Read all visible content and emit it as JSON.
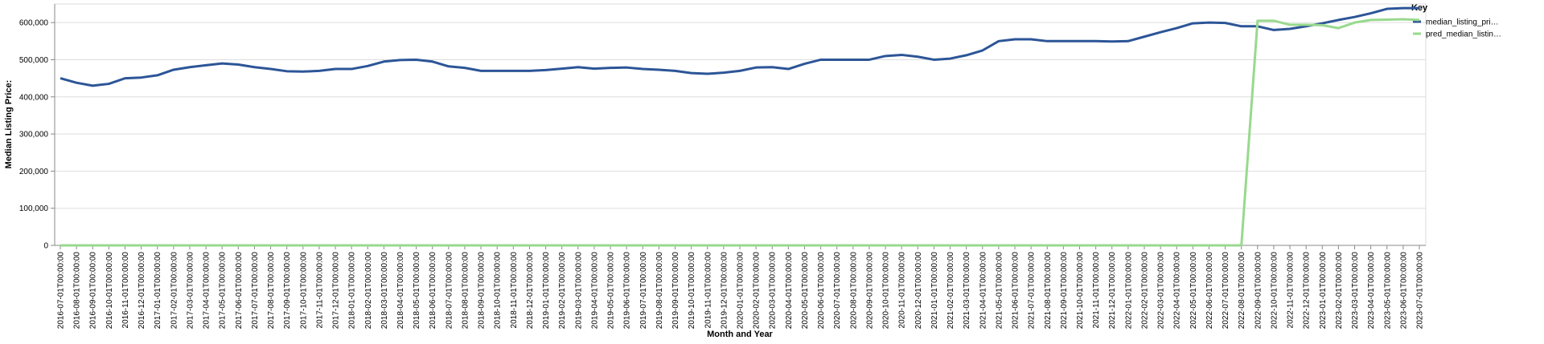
{
  "chart_data": {
    "type": "line",
    "x_label": "Month and Year",
    "y_label": "Median Listing Price:",
    "legend_title": "Key",
    "legend_position": "right",
    "grid": true,
    "x": [
      "2016-07-01T00:00:00",
      "2016-08-01T00:00:00",
      "2016-09-01T00:00:00",
      "2016-10-01T00:00:00",
      "2016-11-01T00:00:00",
      "2016-12-01T00:00:00",
      "2017-01-01T00:00:00",
      "2017-02-01T00:00:00",
      "2017-03-01T00:00:00",
      "2017-04-01T00:00:00",
      "2017-05-01T00:00:00",
      "2017-06-01T00:00:00",
      "2017-07-01T00:00:00",
      "2017-08-01T00:00:00",
      "2017-09-01T00:00:00",
      "2017-10-01T00:00:00",
      "2017-11-01T00:00:00",
      "2017-12-01T00:00:00",
      "2018-01-01T00:00:00",
      "2018-02-01T00:00:00",
      "2018-03-01T00:00:00",
      "2018-04-01T00:00:00",
      "2018-05-01T00:00:00",
      "2018-06-01T00:00:00",
      "2018-07-01T00:00:00",
      "2018-08-01T00:00:00",
      "2018-09-01T00:00:00",
      "2018-10-01T00:00:00",
      "2018-11-01T00:00:00",
      "2018-12-01T00:00:00",
      "2019-01-01T00:00:00",
      "2019-02-01T00:00:00",
      "2019-03-01T00:00:00",
      "2019-04-01T00:00:00",
      "2019-05-01T00:00:00",
      "2019-06-01T00:00:00",
      "2019-07-01T00:00:00",
      "2019-08-01T00:00:00",
      "2019-09-01T00:00:00",
      "2019-10-01T00:00:00",
      "2019-11-01T00:00:00",
      "2019-12-01T00:00:00",
      "2020-01-01T00:00:00",
      "2020-02-01T00:00:00",
      "2020-03-01T00:00:00",
      "2020-04-01T00:00:00",
      "2020-05-01T00:00:00",
      "2020-06-01T00:00:00",
      "2020-07-01T00:00:00",
      "2020-08-01T00:00:00",
      "2020-09-01T00:00:00",
      "2020-10-01T00:00:00",
      "2020-11-01T00:00:00",
      "2020-12-01T00:00:00",
      "2021-01-01T00:00:00",
      "2021-02-01T00:00:00",
      "2021-03-01T00:00:00",
      "2021-04-01T00:00:00",
      "2021-05-01T00:00:00",
      "2021-06-01T00:00:00",
      "2021-07-01T00:00:00",
      "2021-08-01T00:00:00",
      "2021-09-01T00:00:00",
      "2021-10-01T00:00:00",
      "2021-11-01T00:00:00",
      "2021-12-01T00:00:00",
      "2022-01-01T00:00:00",
      "2022-02-01T00:00:00",
      "2022-03-01T00:00:00",
      "2022-04-01T00:00:00",
      "2022-05-01T00:00:00",
      "2022-06-01T00:00:00",
      "2022-07-01T00:00:00",
      "2022-08-01T00:00:00",
      "2022-09-01T00:00:00",
      "2022-10-01T00:00:00",
      "2022-11-01T00:00:00",
      "2022-12-01T00:00:00",
      "2023-01-01T00:00:00",
      "2023-02-01T00:00:00",
      "2023-03-01T00:00:00",
      "2023-04-01T00:00:00",
      "2023-05-01T00:00:00",
      "2023-06-01T00:00:00",
      "2023-07-01T00:00:00"
    ],
    "series": [
      {
        "name": "median_listing_pri…",
        "color": "#2c5597",
        "values": [
          450000,
          438000,
          430000,
          435000,
          450000,
          452000,
          458000,
          473000,
          480000,
          485000,
          490000,
          487000,
          480000,
          475000,
          469000,
          468000,
          470000,
          475000,
          475000,
          483000,
          495000,
          499000,
          500000,
          495000,
          482000,
          478000,
          470000,
          470000,
          470000,
          470000,
          472000,
          476000,
          480000,
          476000,
          478000,
          479000,
          475000,
          473000,
          470000,
          464000,
          462000,
          465000,
          470000,
          479000,
          480000,
          475000,
          489000,
          500000,
          500000,
          500000,
          500000,
          510000,
          513000,
          508000,
          500000,
          503000,
          512000,
          525000,
          550000,
          555000,
          555000,
          550000,
          550000,
          550000,
          550000,
          549000,
          550000,
          562000,
          574000,
          585000,
          598000,
          600000,
          599000,
          590000,
          590000,
          580000,
          583000,
          590000,
          598000,
          607000,
          615000,
          625000,
          637000,
          639000,
          639000
        ]
      },
      {
        "name": "pred_median_listin…",
        "color": "#98d98e",
        "values": [
          0,
          0,
          0,
          0,
          0,
          0,
          0,
          0,
          0,
          0,
          0,
          0,
          0,
          0,
          0,
          0,
          0,
          0,
          0,
          0,
          0,
          0,
          0,
          0,
          0,
          0,
          0,
          0,
          0,
          0,
          0,
          0,
          0,
          0,
          0,
          0,
          0,
          0,
          0,
          0,
          0,
          0,
          0,
          0,
          0,
          0,
          0,
          0,
          0,
          0,
          0,
          0,
          0,
          0,
          0,
          0,
          0,
          0,
          0,
          0,
          0,
          0,
          0,
          0,
          0,
          0,
          0,
          0,
          0,
          0,
          0,
          0,
          0,
          0,
          605000,
          605000,
          594000,
          594000,
          593000,
          585000,
          600000,
          607000,
          608000,
          609000,
          607000
        ]
      }
    ],
    "ylim": [
      0,
      650000
    ],
    "yticks": [
      0,
      {
        "value": 100000,
        "label": "100,000"
      },
      {
        "value": 200000,
        "label": "200,000"
      },
      {
        "value": 300000,
        "label": "300,000"
      },
      {
        "value": 400000,
        "label": "400,000"
      },
      {
        "value": 500000,
        "label": "500,000"
      },
      {
        "value": 600000,
        "label": "600,000"
      }
    ]
  }
}
